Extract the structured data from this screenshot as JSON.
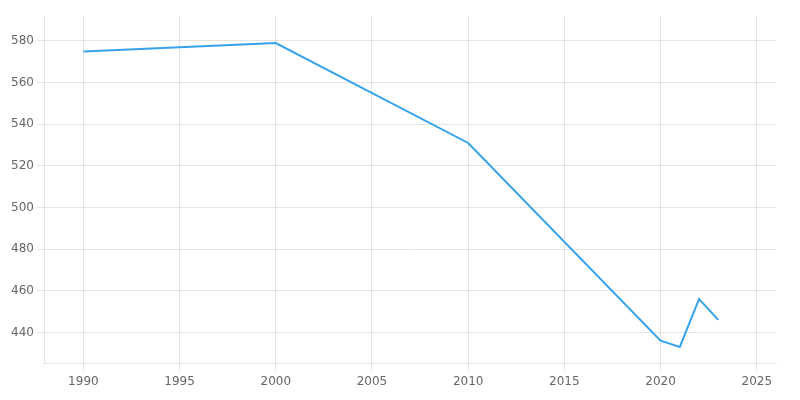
{
  "chart_data": {
    "type": "line",
    "x": [
      1990,
      2000,
      2010,
      2020,
      2021,
      2022,
      2023
    ],
    "values": [
      575,
      579,
      531,
      436,
      433,
      456,
      446
    ],
    "xlim": [
      1988,
      2026
    ],
    "ylim": [
      425,
      592
    ],
    "xticks": [
      1990,
      1995,
      2000,
      2005,
      2010,
      2015,
      2020,
      2025
    ],
    "yticks": [
      440,
      460,
      480,
      500,
      520,
      540,
      560,
      580
    ],
    "grid": true
  }
}
